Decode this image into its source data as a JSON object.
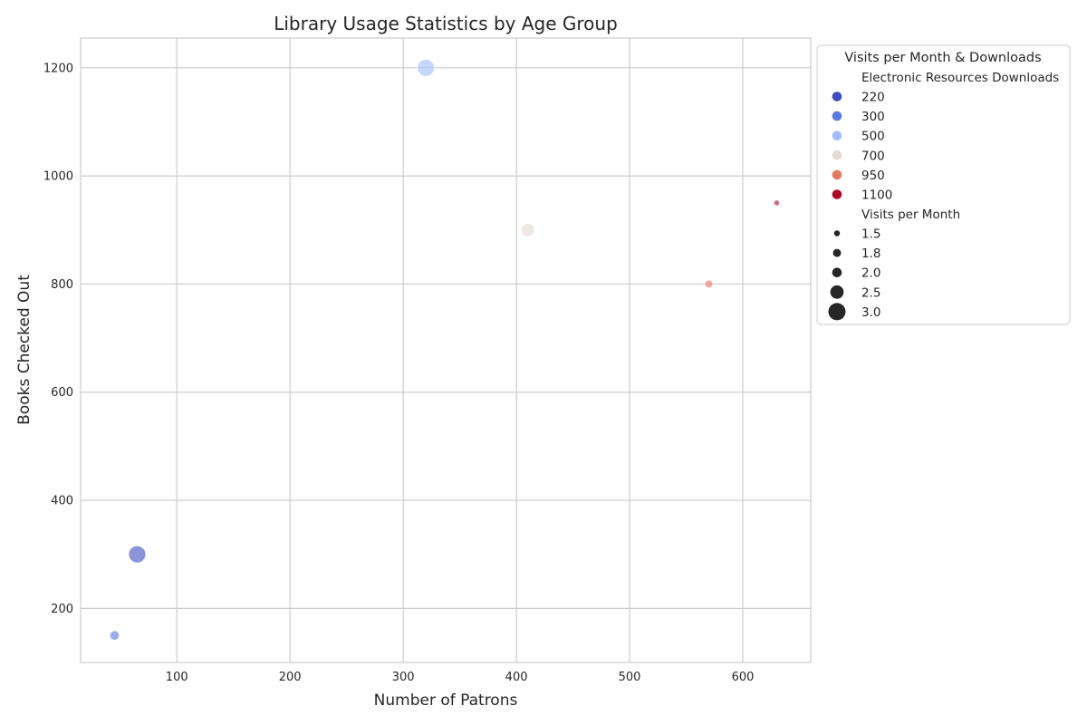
{
  "chart_data": {
    "type": "scatter",
    "title": "Library Usage Statistics by Age Group",
    "xlabel": "Number of Patrons",
    "ylabel": "Books Checked Out",
    "xlim": [
      15,
      660
    ],
    "ylim": [
      100,
      1255
    ],
    "x_ticks": [
      100,
      200,
      300,
      400,
      500,
      600
    ],
    "y_ticks": [
      200,
      400,
      600,
      800,
      1000,
      1200
    ],
    "grid": true,
    "points": [
      {
        "x": 320,
        "y": 1200,
        "downloads": 500,
        "visits": 3.0
      },
      {
        "x": 410,
        "y": 900,
        "downloads": 700,
        "visits": 2.5
      },
      {
        "x": 630,
        "y": 950,
        "downloads": 1100,
        "visits": 1.5
      },
      {
        "x": 570,
        "y": 800,
        "downloads": 950,
        "visits": 1.8
      },
      {
        "x": 65,
        "y": 300,
        "downloads": 220,
        "visits": 3.0
      },
      {
        "x": 45,
        "y": 150,
        "downloads": 300,
        "visits": 2.0
      }
    ],
    "legend": {
      "position": "outside-top-right",
      "title": "Visits per Month & Downloads",
      "hue_title": "Electronic Resources Downloads",
      "hue_entries": [
        {
          "label": "220",
          "color": "#3b4cc0"
        },
        {
          "label": "300",
          "color": "#5a78e4"
        },
        {
          "label": "500",
          "color": "#9ebeff"
        },
        {
          "label": "700",
          "color": "#e4d9d2"
        },
        {
          "label": "950",
          "color": "#e8785e"
        },
        {
          "label": "1100",
          "color": "#b40426"
        }
      ],
      "size_title": "Visits per Month",
      "size_entries": [
        {
          "label": "1.5",
          "value": 1.5
        },
        {
          "label": "1.8",
          "value": 1.8
        },
        {
          "label": "2.0",
          "value": 2.0
        },
        {
          "label": "2.5",
          "value": 2.5
        },
        {
          "label": "3.0",
          "value": 3.0
        }
      ]
    }
  }
}
